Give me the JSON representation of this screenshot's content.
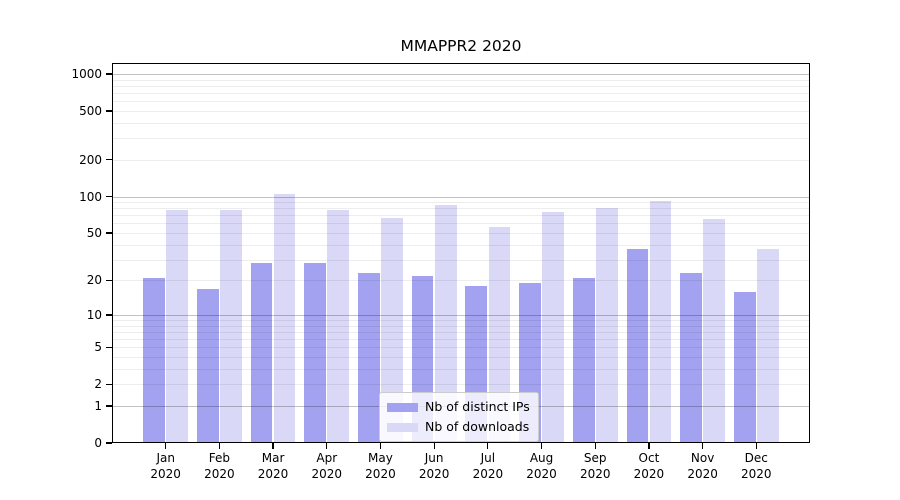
{
  "chart": {
    "title": "MMAPPR2 2020"
  },
  "chart_data": {
    "type": "bar",
    "title": "MMAPPR2 2020",
    "categories": [
      "Jan",
      "Feb",
      "Mar",
      "Apr",
      "May",
      "Jun",
      "Jul",
      "Aug",
      "Sep",
      "Oct",
      "Nov",
      "Dec"
    ],
    "x_tick_line2": "2020",
    "series": [
      {
        "name": "Nb of distinct IPs",
        "color": "#a2a2f0",
        "values": [
          21,
          17,
          28,
          28,
          23,
          22,
          18,
          19,
          21,
          37,
          23,
          16
        ]
      },
      {
        "name": "Nb of downloads",
        "color": "#d9d9f7",
        "values": [
          78,
          78,
          104,
          78,
          67,
          85,
          56,
          74,
          80,
          92,
          65,
          37
        ]
      }
    ],
    "xlabel": "",
    "ylabel": "",
    "y_scale": "log1p",
    "ylim": [
      0,
      1230
    ],
    "y_ticks": [
      0,
      1,
      2,
      5,
      10,
      20,
      50,
      100,
      200,
      500,
      1000
    ],
    "y_major_gridlines": [
      1,
      10,
      100,
      1000
    ],
    "y_minor_gridlines": [
      2,
      3,
      4,
      5,
      6,
      7,
      8,
      9,
      20,
      30,
      40,
      50,
      60,
      70,
      80,
      90,
      200,
      300,
      400,
      500,
      600,
      700,
      800,
      900
    ],
    "grid": true,
    "legend_position": "lower center"
  }
}
